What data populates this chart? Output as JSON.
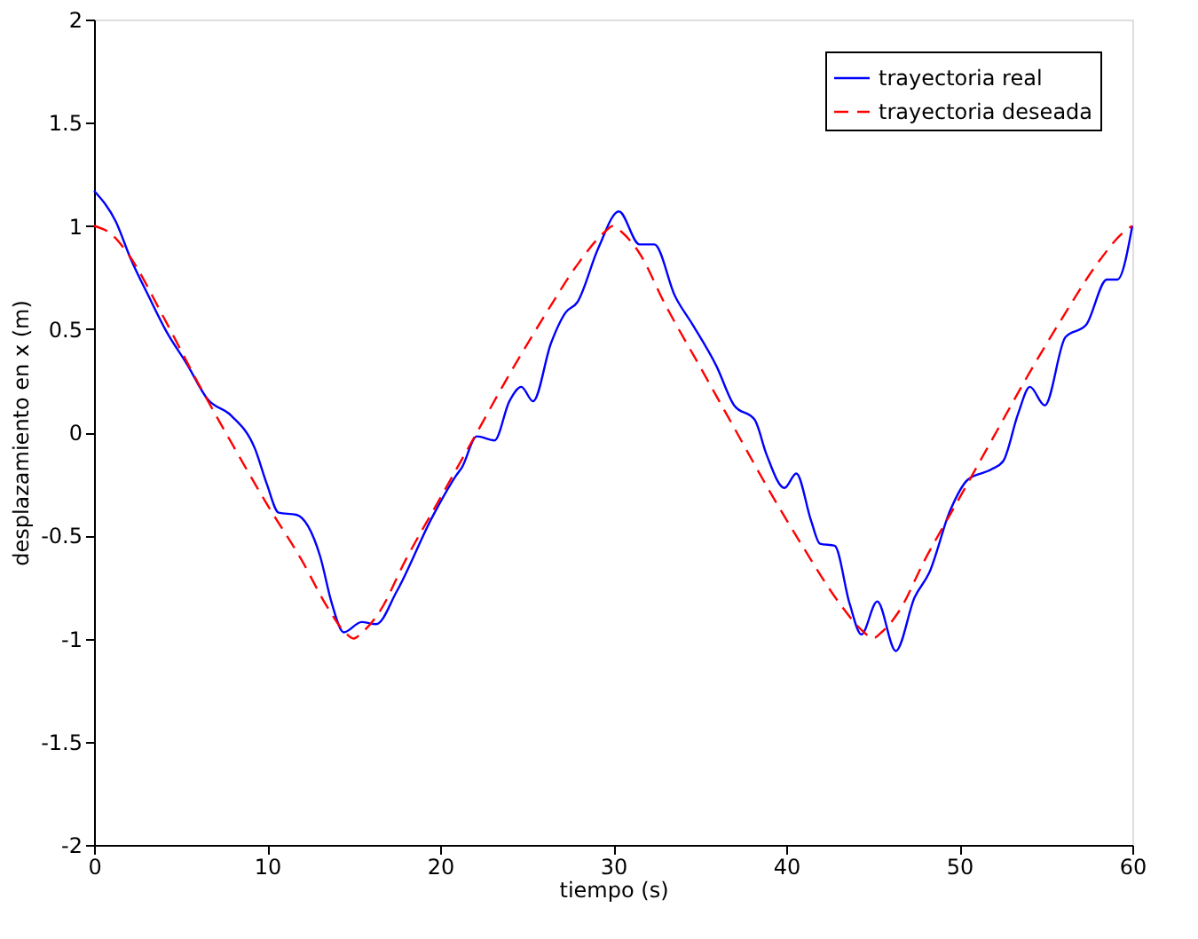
{
  "chart_data": {
    "type": "line",
    "xlabel": "tiempo (s)",
    "ylabel": "desplazamiento en x (m)",
    "xlim": [
      0,
      60
    ],
    "ylim": [
      -2,
      2
    ],
    "xticks": [
      0,
      10,
      20,
      30,
      40,
      50,
      60
    ],
    "yticks": [
      -2,
      -1.5,
      -1,
      -0.5,
      0,
      0.5,
      1,
      1.5,
      2
    ],
    "grid": false,
    "legend": "top right",
    "series": [
      {
        "name": "trayectoria real",
        "color": "#0000ff",
        "line_style": "solid",
        "x": [
          0,
          1.26,
          2.12,
          3.15,
          4.17,
          5.37,
          6.56,
          7.93,
          9.3,
          9.98,
          10.67,
          11.69,
          13.06,
          13.74,
          14.43,
          15.46,
          16.3,
          17.5,
          19.55,
          20.92,
          21.26,
          22.12,
          23.14,
          24.0,
          24.69,
          25.37,
          26.4,
          27.25,
          27.93,
          29.13,
          30.33,
          31.52,
          32.38,
          33.57,
          34.6,
          35.97,
          36.99,
          38.18,
          38.87,
          39.9,
          40.58,
          41.44,
          41.95,
          42.8,
          43.66,
          44.34,
          45.26,
          46.33,
          47.42,
          48.27,
          49.47,
          50.49,
          51.86,
          52.54,
          53.4,
          54.08,
          54.94,
          56.13,
          57.33,
          58.53,
          59.14,
          60
        ],
        "values": [
          1.17,
          1.02,
          0.84,
          0.66,
          0.49,
          0.33,
          0.16,
          0.08,
          -0.08,
          -0.25,
          -0.39,
          -0.4,
          -0.6,
          -0.83,
          -0.97,
          -0.92,
          -0.93,
          -0.77,
          -0.41,
          -0.21,
          -0.17,
          -0.02,
          -0.04,
          0.15,
          0.22,
          0.15,
          0.43,
          0.58,
          0.63,
          0.89,
          1.07,
          0.91,
          0.91,
          0.66,
          0.52,
          0.32,
          0.13,
          0.06,
          -0.11,
          -0.27,
          -0.2,
          -0.43,
          -0.54,
          -0.55,
          -0.83,
          -0.98,
          -0.82,
          -1.06,
          -0.8,
          -0.68,
          -0.38,
          -0.23,
          -0.18,
          -0.14,
          0.09,
          0.22,
          0.13,
          0.46,
          0.52,
          0.74,
          0.74,
          1.0
        ]
      },
      {
        "name": "trayectoria deseada",
        "color": "#ff0000",
        "line_style": "dashed",
        "x": [
          0,
          1,
          2,
          4,
          6,
          8,
          10,
          12,
          13.5,
          14.5,
          15,
          15.5,
          16.5,
          18,
          20,
          22,
          24,
          26,
          28,
          29.5,
          30,
          30.5,
          31.5,
          33,
          35,
          37,
          39,
          41,
          43,
          44.5,
          45,
          45.5,
          46.5,
          48,
          50,
          52,
          54,
          56,
          58,
          59.5,
          60
        ],
        "values": [
          1.0,
          0.96,
          0.86,
          0.56,
          0.24,
          -0.06,
          -0.35,
          -0.62,
          -0.85,
          -0.97,
          -1.0,
          -0.97,
          -0.87,
          -0.62,
          -0.32,
          -0.02,
          0.28,
          0.56,
          0.82,
          0.97,
          1.0,
          0.97,
          0.87,
          0.62,
          0.32,
          0.02,
          -0.28,
          -0.56,
          -0.82,
          -0.97,
          -1.0,
          -0.97,
          -0.87,
          -0.62,
          -0.32,
          -0.02,
          0.28,
          0.56,
          0.82,
          0.97,
          1.0
        ]
      }
    ]
  }
}
